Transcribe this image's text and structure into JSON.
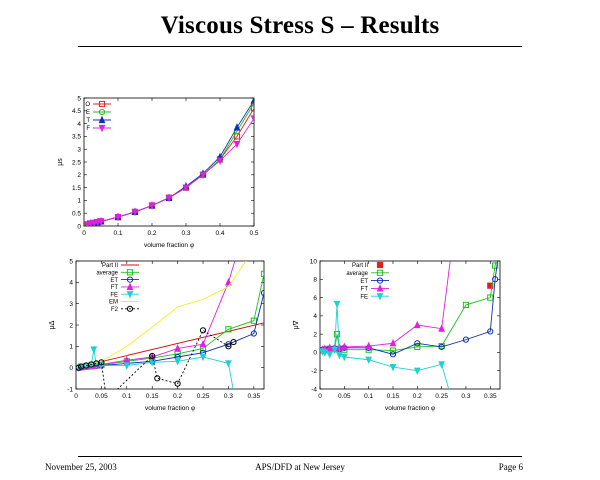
{
  "page": {
    "title": "Viscous Stress S – Results",
    "footer_left": "November 25, 2003",
    "footer_center": "APS/DFD at New Jersey",
    "footer_right": "Page 6"
  },
  "chart_data": [
    {
      "type": "line",
      "xlabel": "volume fraction φ",
      "ylabel": "μs",
      "xlim": [
        0,
        0.5
      ],
      "ylim": [
        0,
        5
      ],
      "xticks": [
        0,
        0.1,
        0.2,
        0.3,
        0.4,
        0.5
      ],
      "xtick_labels": [
        "0",
        "0.1",
        "0.2",
        "0.3",
        "0.4",
        "0.5"
      ],
      "yticks": [
        0,
        0.5,
        1,
        1.5,
        2,
        2.5,
        3,
        3.5,
        4,
        4.5,
        5
      ],
      "ytick_labels": [
        "0",
        "0.5",
        "1",
        "1.5",
        "2",
        "2.5",
        "3",
        "3.5",
        "4",
        "4.5",
        "5"
      ],
      "legend_position": "top-left",
      "series": [
        {
          "name": "O",
          "color": "#e02020",
          "marker": "square",
          "x": [
            0.01,
            0.02,
            0.03,
            0.04,
            0.05,
            0.1,
            0.15,
            0.2,
            0.25,
            0.3,
            0.35,
            0.4,
            0.45,
            0.5
          ],
          "y": [
            0.06,
            0.1,
            0.12,
            0.15,
            0.18,
            0.35,
            0.55,
            0.8,
            1.1,
            1.5,
            2.0,
            2.6,
            3.5,
            4.6
          ]
        },
        {
          "name": "E",
          "color": "#20c020",
          "marker": "circle",
          "x": [
            0.01,
            0.02,
            0.03,
            0.04,
            0.05,
            0.1,
            0.15,
            0.2,
            0.25,
            0.3,
            0.35,
            0.4,
            0.45,
            0.5
          ],
          "y": [
            0.06,
            0.1,
            0.12,
            0.15,
            0.18,
            0.35,
            0.55,
            0.8,
            1.1,
            1.5,
            2.0,
            2.6,
            3.7,
            4.8
          ]
        },
        {
          "name": "T",
          "color": "#1030b0",
          "marker": "triangle",
          "x": [
            0.01,
            0.02,
            0.03,
            0.04,
            0.05,
            0.1,
            0.15,
            0.2,
            0.25,
            0.3,
            0.35,
            0.4,
            0.45,
            0.5
          ],
          "y": [
            0.06,
            0.1,
            0.12,
            0.15,
            0.18,
            0.35,
            0.55,
            0.8,
            1.1,
            1.55,
            2.05,
            2.7,
            3.85,
            4.9
          ]
        },
        {
          "name": "F",
          "color": "#e020e0",
          "marker": "triangle-down",
          "x": [
            0.01,
            0.02,
            0.03,
            0.04,
            0.05,
            0.1,
            0.15,
            0.2,
            0.25,
            0.3,
            0.35,
            0.4,
            0.45,
            0.5
          ],
          "y": [
            0.06,
            0.1,
            0.12,
            0.15,
            0.18,
            0.35,
            0.55,
            0.8,
            1.1,
            1.5,
            2.0,
            2.55,
            3.2,
            4.2
          ]
        }
      ]
    },
    {
      "type": "line",
      "xlabel": "volume fraction φ",
      "ylabel": "μΔ",
      "xlim": [
        0,
        0.37
      ],
      "ylim": [
        -1,
        5
      ],
      "xticks": [
        0,
        0.05,
        0.1,
        0.15,
        0.2,
        0.25,
        0.3,
        0.35
      ],
      "xtick_labels": [
        "0",
        "0.05",
        "0.1",
        "0.15",
        "0.2",
        "0.25",
        "0.3",
        "0.35"
      ],
      "yticks": [
        -1,
        0,
        1,
        2,
        3,
        4,
        5
      ],
      "ytick_labels": [
        "-1",
        "0",
        "1",
        "2",
        "3",
        "4",
        "5"
      ],
      "legend_position": "top-left",
      "series": [
        {
          "name": "Part II",
          "color": "#d01010",
          "marker": "none",
          "x": [
            0,
            0.37
          ],
          "y": [
            0,
            2.1
          ]
        },
        {
          "name": "average",
          "color": "#20c020",
          "marker": "square",
          "x": [
            0.005,
            0.01,
            0.02,
            0.03,
            0.04,
            0.05,
            0.1,
            0.15,
            0.2,
            0.25,
            0.3,
            0.35,
            0.37
          ],
          "y": [
            0,
            0.02,
            0.05,
            0.07,
            0.1,
            0.12,
            0.3,
            0.45,
            0.65,
            0.9,
            1.8,
            2.2,
            4.4
          ]
        },
        {
          "name": "ET",
          "color": "#1030b0",
          "marker": "circle",
          "x": [
            0.005,
            0.01,
            0.02,
            0.03,
            0.04,
            0.05,
            0.1,
            0.15,
            0.2,
            0.25,
            0.3,
            0.35,
            0.37
          ],
          "y": [
            0,
            0.02,
            0.04,
            0.06,
            0.08,
            0.1,
            0.2,
            0.3,
            0.5,
            0.7,
            1.1,
            1.6,
            3.5
          ]
        },
        {
          "name": "FT",
          "color": "#e020e0",
          "marker": "triangle",
          "x": [
            0.005,
            0.01,
            0.02,
            0.03,
            0.04,
            0.05,
            0.1,
            0.15,
            0.2,
            0.25,
            0.3,
            0.35
          ],
          "y": [
            0,
            0.02,
            0.05,
            0.08,
            0.1,
            0.15,
            0.35,
            0.5,
            0.9,
            1.1,
            4.0,
            8
          ]
        },
        {
          "name": "FE",
          "color": "#20d0d0",
          "marker": "triangle-down",
          "x": [
            0.005,
            0.01,
            0.02,
            0.03,
            0.035,
            0.04,
            0.05,
            0.1,
            0.15,
            0.2,
            0.25,
            0.3,
            0.31
          ],
          "y": [
            0,
            0.05,
            0.08,
            0.1,
            0.85,
            0.15,
            0.1,
            0.1,
            0.25,
            0.3,
            0.5,
            0.2,
            -1.1
          ]
        },
        {
          "name": "EM",
          "color": "#f0f020",
          "marker": "none",
          "x": [
            0,
            0.05,
            0.1,
            0.15,
            0.2,
            0.25,
            0.3,
            0.34
          ],
          "y": [
            0,
            0.3,
            1.0,
            1.9,
            2.85,
            3.2,
            3.8,
            5.2
          ]
        },
        {
          "name": "F2",
          "color": "#000000",
          "marker": "circle",
          "dash": true,
          "x": [
            0.005,
            0.01,
            0.02,
            0.03,
            0.04,
            0.05,
            0.06,
            0.15,
            0.16,
            0.2,
            0.25,
            0.3,
            0.31
          ],
          "y": [
            0,
            0.05,
            0.1,
            0.15,
            0.2,
            0.25,
            -1.5,
            0.55,
            -0.5,
            -0.75,
            1.75,
            1.0,
            1.2
          ]
        }
      ]
    },
    {
      "type": "line",
      "xlabel": "volume fraction φ",
      "ylabel": "μ∇",
      "xlim": [
        0,
        0.37
      ],
      "ylim": [
        -4,
        10
      ],
      "xticks": [
        0,
        0.05,
        0.1,
        0.15,
        0.2,
        0.25,
        0.3,
        0.35
      ],
      "xtick_labels": [
        "0",
        "0.05",
        "0.1",
        "0.15",
        "0.2",
        "0.25",
        "0.3",
        "0.35"
      ],
      "yticks": [
        -4,
        -2,
        0,
        2,
        4,
        6,
        8,
        10
      ],
      "ytick_labels": [
        "-4",
        "-2",
        "0",
        "2",
        "4",
        "6",
        "8",
        "10"
      ],
      "legend_position": "top-left",
      "series": [
        {
          "name": "Part II",
          "color": "#e02020",
          "marker": "filled-square",
          "line": false,
          "x": [
            0.35
          ],
          "y": [
            7.3
          ]
        },
        {
          "name": "average",
          "color": "#20c020",
          "marker": "square",
          "x": [
            0.005,
            0.01,
            0.02,
            0.03,
            0.035,
            0.04,
            0.05,
            0.1,
            0.15,
            0.2,
            0.25,
            0.3,
            0.35,
            0.36,
            0.37
          ],
          "y": [
            0.2,
            0.3,
            0.4,
            0.35,
            2.0,
            0.4,
            0.3,
            0.3,
            0.2,
            0.6,
            0.7,
            5.2,
            6.0,
            9.5,
            12
          ]
        },
        {
          "name": "ET",
          "color": "#1030b0",
          "marker": "circle",
          "x": [
            0.005,
            0.01,
            0.02,
            0.03,
            0.04,
            0.05,
            0.1,
            0.15,
            0.2,
            0.25,
            0.3,
            0.35,
            0.36,
            0.37
          ],
          "y": [
            0.3,
            0.35,
            0.4,
            0.45,
            0.4,
            0.5,
            0.5,
            -0.2,
            1.0,
            0.6,
            1.4,
            2.3,
            8,
            12
          ]
        },
        {
          "name": "FT",
          "color": "#e020e0",
          "marker": "triangle",
          "x": [
            0.005,
            0.01,
            0.02,
            0.03,
            0.04,
            0.05,
            0.1,
            0.15,
            0.2,
            0.25,
            0.27
          ],
          "y": [
            0.3,
            0.4,
            0.5,
            0.5,
            0.55,
            0.6,
            0.7,
            1.0,
            3.0,
            2.6,
            11
          ]
        },
        {
          "name": "FE",
          "color": "#20d0d0",
          "marker": "triangle-down",
          "x": [
            0.005,
            0.01,
            0.02,
            0.03,
            0.035,
            0.04,
            0.05,
            0.1,
            0.15,
            0.2,
            0.25,
            0.27
          ],
          "y": [
            0.1,
            0.0,
            -0.2,
            0.3,
            5.3,
            -0.3,
            -0.5,
            -0.8,
            -1.6,
            -2.0,
            -1.3,
            -5
          ]
        }
      ]
    }
  ]
}
